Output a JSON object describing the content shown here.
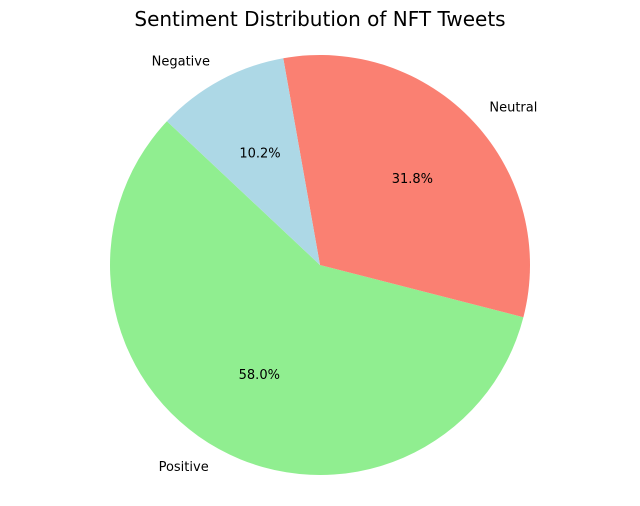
{
  "chart_data": {
    "type": "pie",
    "title": "Sentiment Distribution of NFT Tweets",
    "slices": [
      {
        "label": "Positive",
        "value": 58.0,
        "pct_label": "58.0%",
        "color": "#90ee90"
      },
      {
        "label": "Neutral",
        "value": 31.8,
        "pct_label": "31.8%",
        "color": "#fa8072"
      },
      {
        "label": "Negative",
        "value": 10.2,
        "pct_label": "10.2%",
        "color": "#add8e6"
      }
    ],
    "legend": false
  }
}
